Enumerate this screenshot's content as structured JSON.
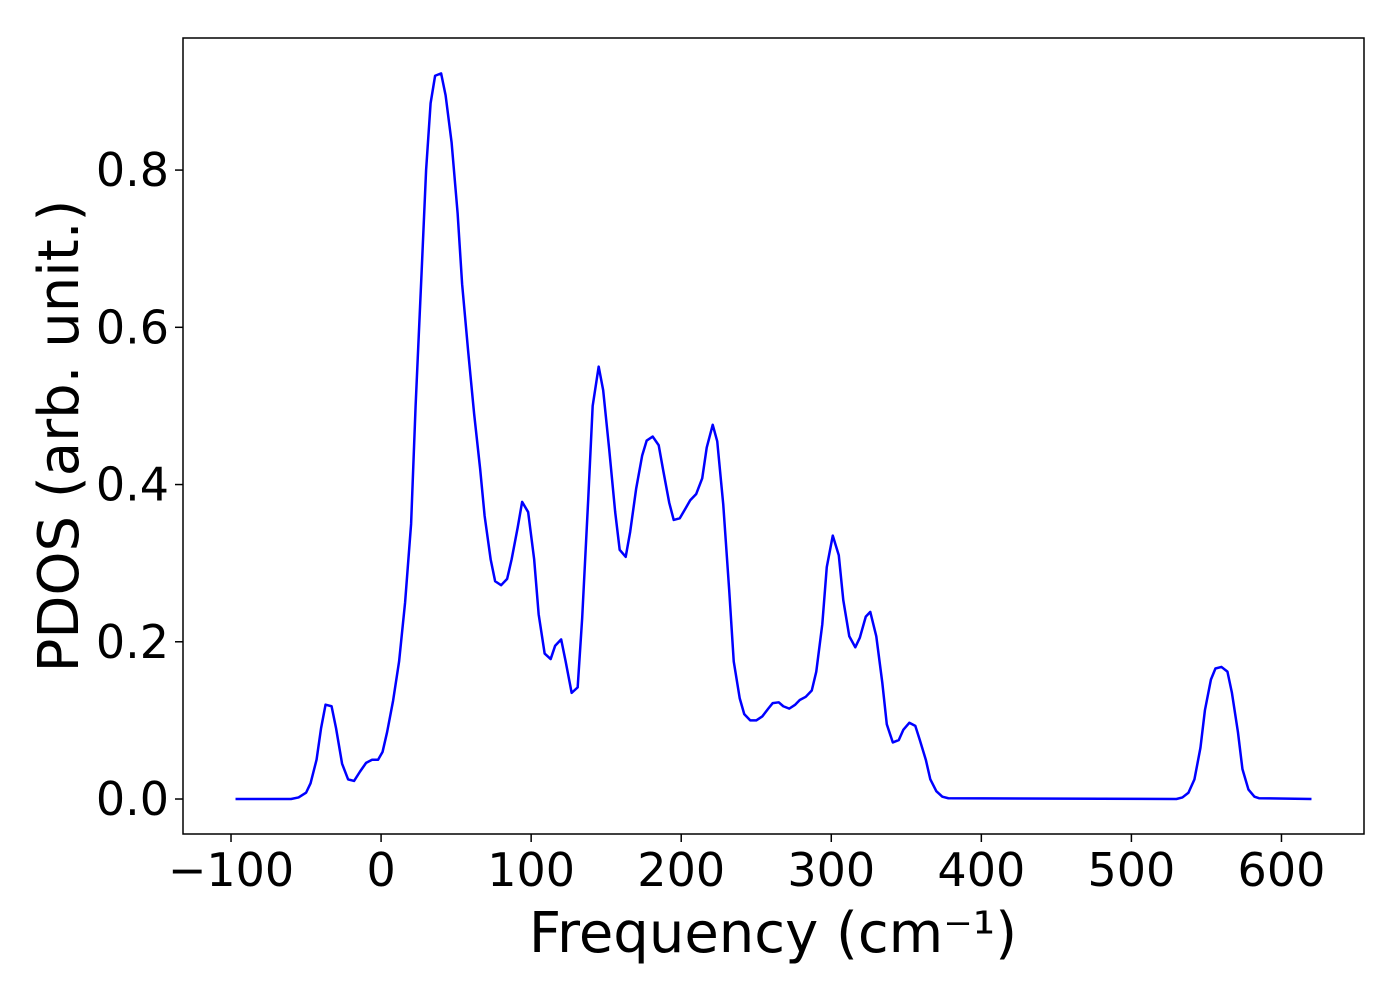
{
  "chart_data": {
    "type": "line",
    "x_label": "Frequency (cm⁻¹)",
    "y_label": "PDOS (arb. unit.)",
    "xlim": [
      -132,
      655
    ],
    "ylim": [
      -0.0445,
      0.968
    ],
    "xticks": [
      {
        "value": -100,
        "label": "−100"
      },
      0,
      100,
      200,
      300,
      400,
      500,
      600
    ],
    "yticks": [
      {
        "value": 0,
        "label": "0.0"
      },
      0.2,
      0.4,
      0.6,
      0.8
    ],
    "grid": false,
    "series": [
      {
        "color": "#0000ff",
        "x": [
          -97,
          -60,
          -55,
          -50,
          -47,
          -43,
          -40,
          -37,
          -33,
          -30,
          -26,
          -22,
          -18,
          -14,
          -10,
          -6,
          -2,
          1,
          4,
          8,
          12,
          16,
          20,
          23,
          27,
          30,
          33,
          36,
          40,
          43,
          47,
          51,
          54,
          58,
          62,
          66,
          69,
          73,
          76,
          80,
          84,
          87,
          91,
          94,
          98,
          102,
          105,
          109,
          113,
          116,
          120,
          123,
          127,
          131,
          134,
          138,
          141,
          145,
          148,
          152,
          156,
          159,
          163,
          166,
          170,
          174,
          177,
          181,
          185,
          188,
          192,
          195,
          199,
          203,
          206,
          210,
          214,
          217,
          221,
          224,
          228,
          232,
          235,
          239,
          242,
          246,
          250,
          254,
          258,
          261,
          265,
          268,
          272,
          276,
          279,
          283,
          287,
          290,
          294,
          297,
          301,
          305,
          308,
          312,
          316,
          319,
          323,
          326,
          330,
          334,
          337,
          341,
          345,
          348,
          352,
          356,
          359,
          363,
          366,
          370,
          374,
          378,
          530,
          534,
          538,
          542,
          546,
          549,
          553,
          556,
          560,
          564,
          567,
          571,
          574,
          578,
          582,
          585,
          620
        ],
        "values": [
          0,
          0,
          0.002,
          0.008,
          0.02,
          0.05,
          0.09,
          0.12,
          0.118,
          0.09,
          0.045,
          0.025,
          0.023,
          0.035,
          0.046,
          0.05,
          0.05,
          0.06,
          0.085,
          0.125,
          0.175,
          0.25,
          0.35,
          0.5,
          0.67,
          0.8,
          0.885,
          0.92,
          0.923,
          0.895,
          0.835,
          0.745,
          0.655,
          0.57,
          0.49,
          0.42,
          0.36,
          0.305,
          0.277,
          0.272,
          0.28,
          0.305,
          0.345,
          0.378,
          0.365,
          0.305,
          0.235,
          0.185,
          0.178,
          0.195,
          0.203,
          0.175,
          0.135,
          0.142,
          0.23,
          0.38,
          0.5,
          0.55,
          0.52,
          0.445,
          0.365,
          0.317,
          0.308,
          0.34,
          0.395,
          0.437,
          0.456,
          0.461,
          0.45,
          0.418,
          0.377,
          0.355,
          0.357,
          0.37,
          0.38,
          0.388,
          0.408,
          0.447,
          0.476,
          0.455,
          0.375,
          0.265,
          0.175,
          0.128,
          0.108,
          0.1,
          0.1,
          0.105,
          0.115,
          0.122,
          0.123,
          0.118,
          0.115,
          0.12,
          0.126,
          0.13,
          0.138,
          0.162,
          0.222,
          0.295,
          0.335,
          0.31,
          0.253,
          0.207,
          0.193,
          0.205,
          0.232,
          0.238,
          0.207,
          0.148,
          0.095,
          0.072,
          0.075,
          0.088,
          0.097,
          0.093,
          0.075,
          0.05,
          0.025,
          0.01,
          0.003,
          0.001,
          0,
          0.002,
          0.008,
          0.025,
          0.065,
          0.113,
          0.152,
          0.166,
          0.168,
          0.162,
          0.135,
          0.085,
          0.038,
          0.012,
          0.003,
          0.001,
          0
        ]
      }
    ]
  }
}
